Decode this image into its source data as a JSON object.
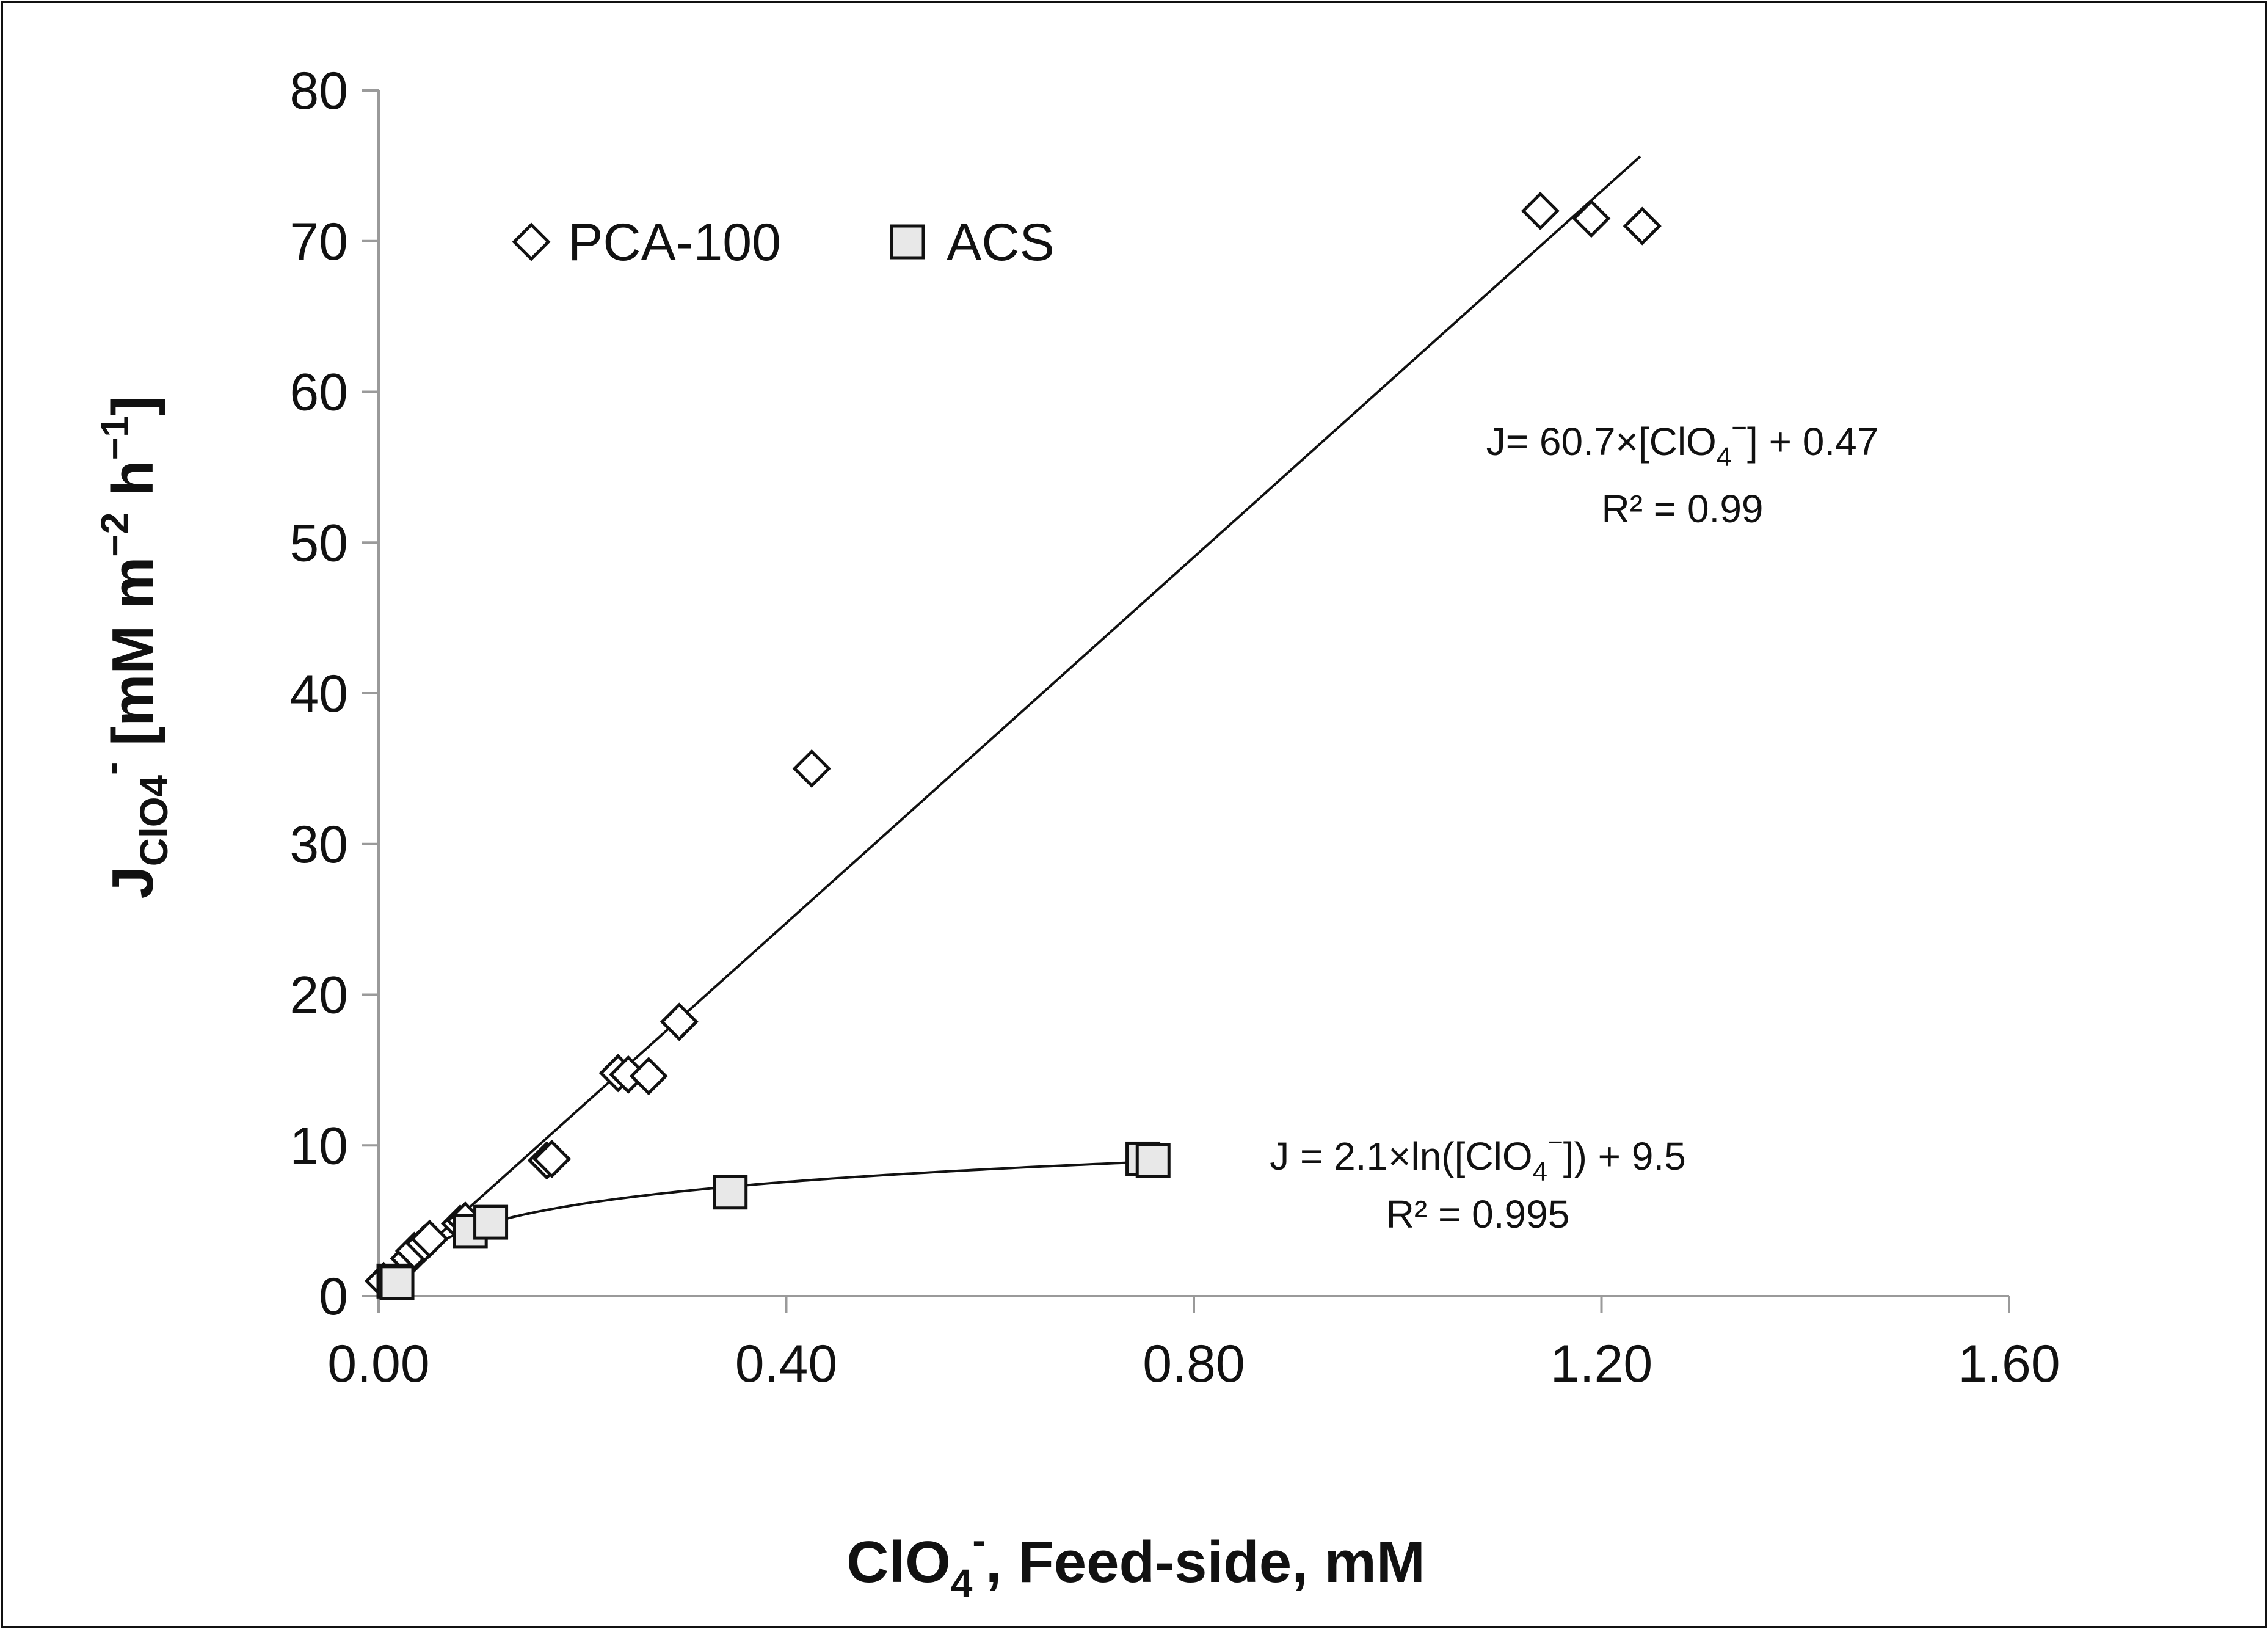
{
  "chart_data": {
    "type": "scatter",
    "title": "",
    "xlabel": {
      "main": "ClO",
      "sub": "4",
      "sup": "-",
      "rest": ", Feed-side, mM"
    },
    "ylabel": {
      "main": "J",
      "sub": "ClO4",
      "sup": "-",
      "rest": " [mM  m",
      "exp1": "−2",
      "mid": " h",
      "exp2": "−1",
      "end": "]"
    },
    "xlim": [
      0,
      1.6
    ],
    "ylim": [
      0,
      80
    ],
    "x_ticks": [
      "0.00",
      "0.40",
      "0.80",
      "1.20",
      "1.60"
    ],
    "y_ticks": [
      "0",
      "10",
      "20",
      "30",
      "40",
      "50",
      "60",
      "70",
      "80"
    ],
    "grid": false,
    "legend": {
      "position": "top-left",
      "entries": [
        {
          "name": "PCA-100",
          "marker": "diamond",
          "fill": "#ffffff"
        },
        {
          "name": "ACS",
          "marker": "square",
          "fill": "#e8e8e8"
        }
      ]
    },
    "series": [
      {
        "name": "PCA-100",
        "marker": "diamond",
        "points": [
          [
            0.005,
            1.0
          ],
          [
            0.03,
            2.5
          ],
          [
            0.035,
            3.0
          ],
          [
            0.045,
            3.5
          ],
          [
            0.05,
            3.8
          ],
          [
            0.08,
            4.8
          ],
          [
            0.085,
            5.0
          ],
          [
            0.165,
            9.0
          ],
          [
            0.17,
            9.1
          ],
          [
            0.235,
            14.8
          ],
          [
            0.245,
            14.7
          ],
          [
            0.265,
            14.6
          ],
          [
            0.295,
            18.2
          ],
          [
            0.425,
            35.0
          ],
          [
            1.14,
            72.0
          ],
          [
            1.19,
            71.5
          ],
          [
            1.24,
            71.0
          ]
        ],
        "fit": {
          "type": "linear",
          "slope": 60.7,
          "intercept": 0.47,
          "x_range": [
            0.005,
            1.238
          ],
          "equation_lines": [
            {
              "pre": "J= 60.7×[ClO",
              "sub": "4",
              "sup": "−",
              "post": "] + 0.47"
            },
            {
              "pre": "R² = 0.99"
            }
          ]
        }
      },
      {
        "name": "ACS",
        "marker": "square",
        "points": [
          [
            0.015,
            1.0
          ],
          [
            0.018,
            0.9
          ],
          [
            0.09,
            4.3
          ],
          [
            0.11,
            4.9
          ],
          [
            0.345,
            6.9
          ],
          [
            0.75,
            9.1
          ],
          [
            0.76,
            9.0
          ]
        ],
        "fit": {
          "type": "log",
          "a": 2.1,
          "b": 9.5,
          "x_range": [
            0.012,
            0.755
          ],
          "equation_lines": [
            {
              "pre": "J = 2.1×ln([ClO",
              "sub": "4",
              "sup": "−",
              "post": "]) + 9.5"
            },
            {
              "pre": "R² = 0.995"
            }
          ]
        }
      }
    ],
    "colors": {
      "line": "#111111",
      "diamond_fill": "#ffffff",
      "square_fill": "#e8e8e8",
      "frame": "#111111",
      "axis": "#9a9a9a"
    }
  }
}
